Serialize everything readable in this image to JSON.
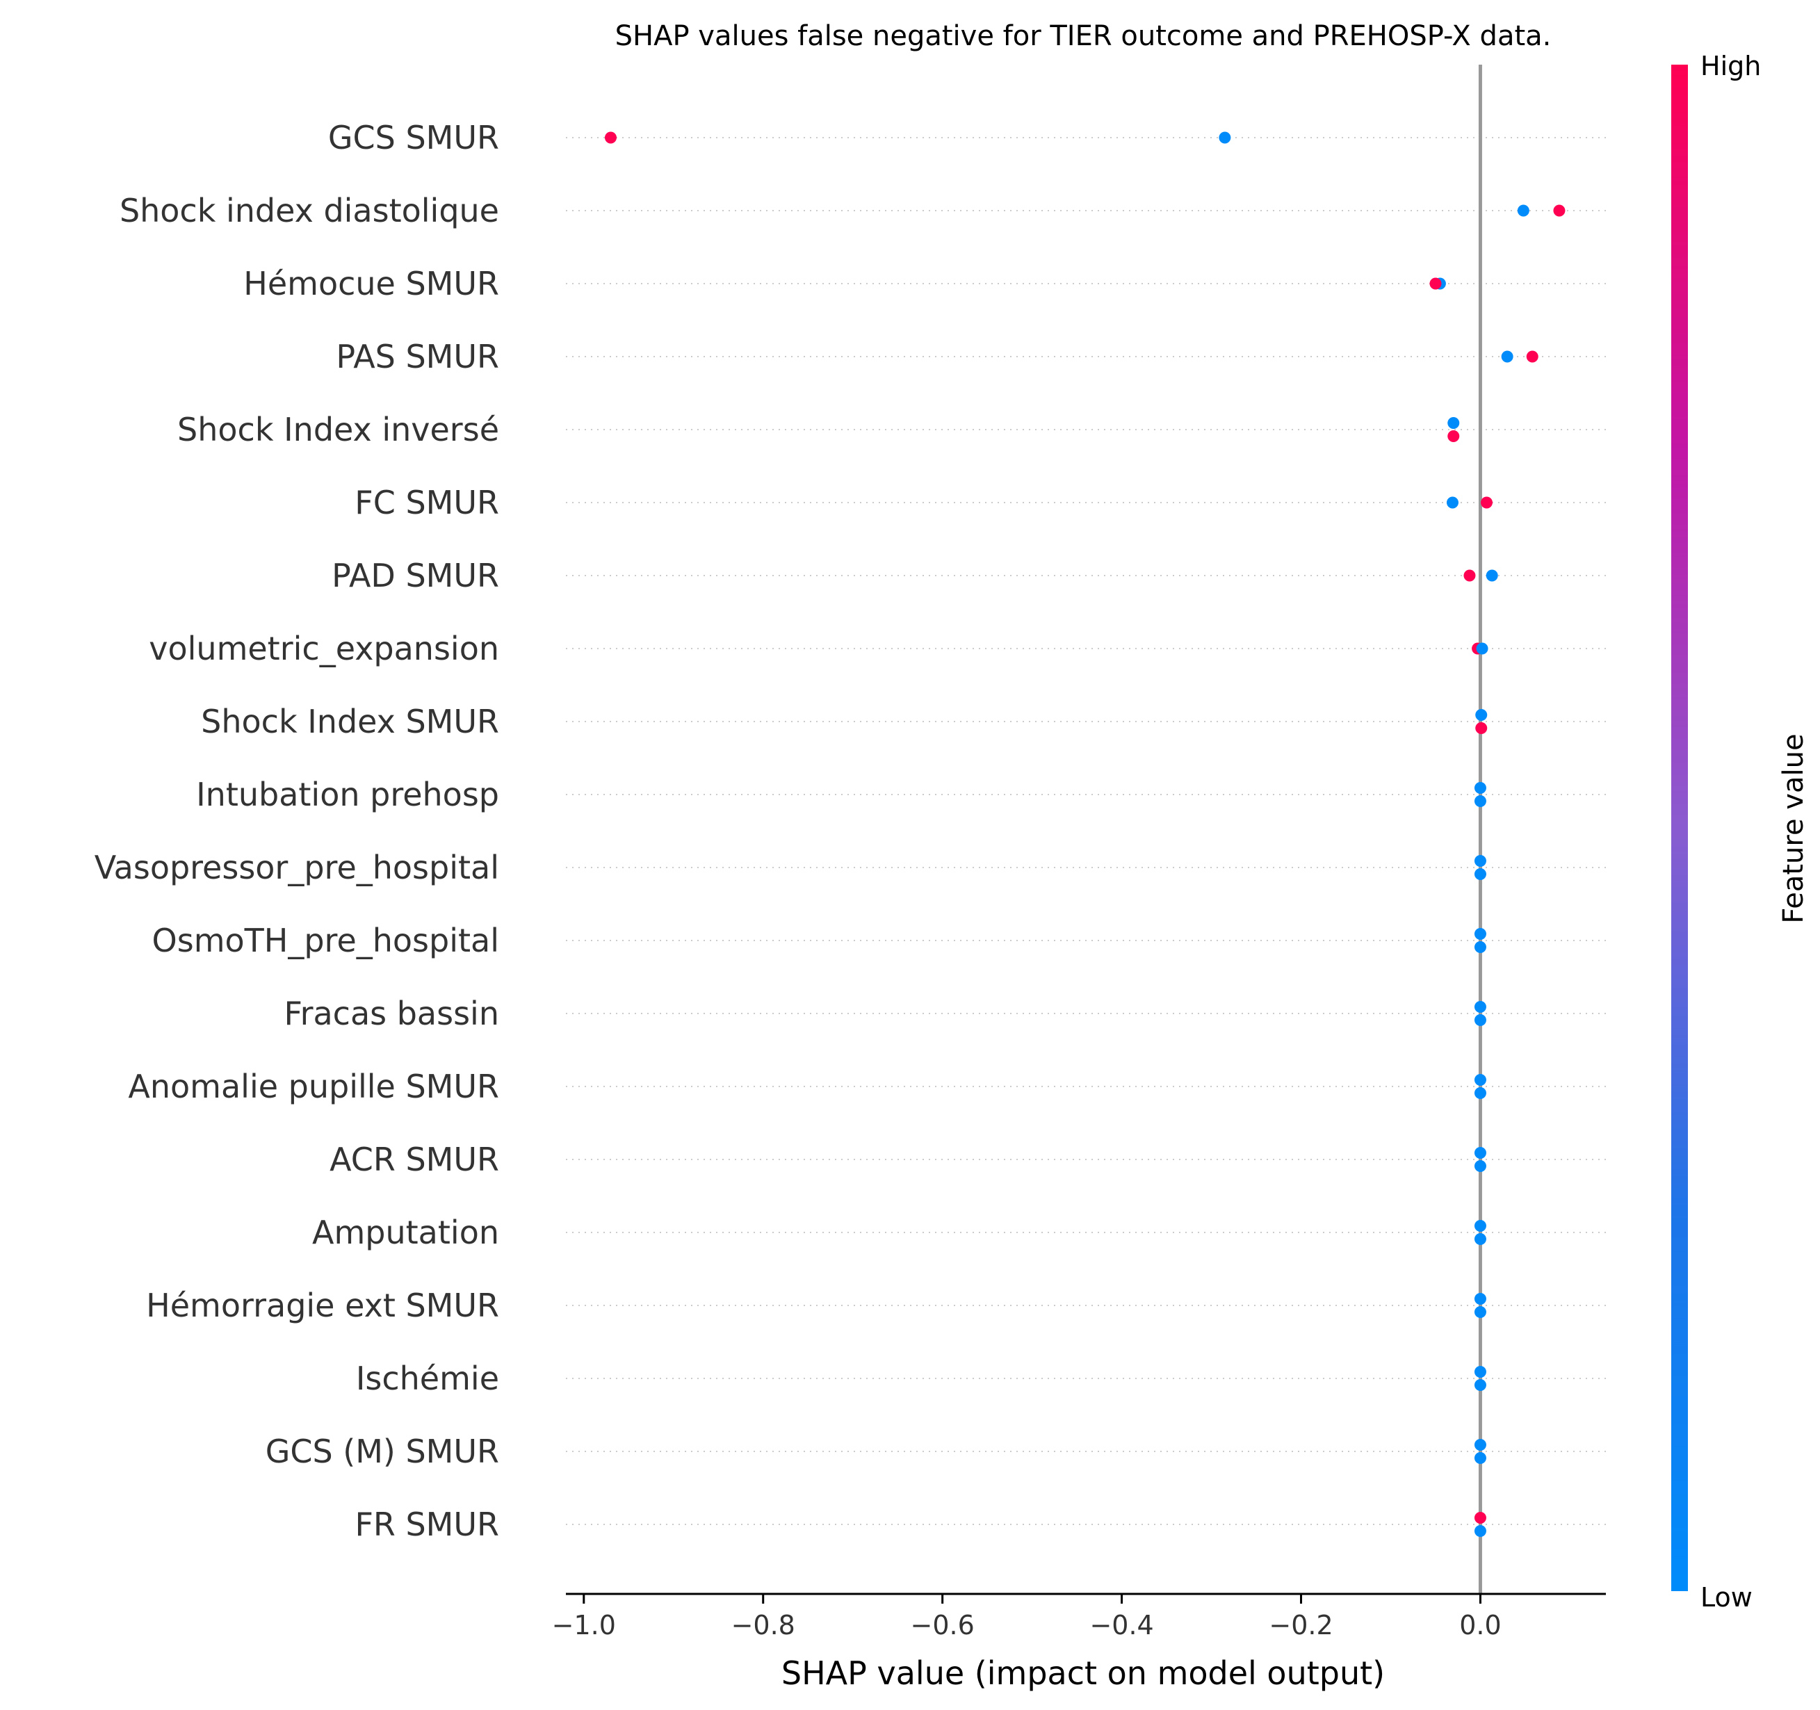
{
  "chart_data": {
    "type": "scatter",
    "title": "SHAP values false negative for TIER outcome and PREHOSP-X data.",
    "xlabel": "SHAP value (impact on model output)",
    "xlim": [
      -1.02,
      0.14
    ],
    "xticks": [
      -1.0,
      -0.8,
      -0.6,
      -0.4,
      -0.2,
      0.0
    ],
    "xtick_labels": [
      "−1.0",
      "−0.8",
      "−0.6",
      "−0.4",
      "−0.2",
      "0.0"
    ],
    "zero_line": true,
    "grid": "horizontal dotted per feature",
    "colors": {
      "high": "#ff0052",
      "low": "#008bfb",
      "mid": "#9d4fce",
      "zero_line": "#999999",
      "grid": "#cccccc"
    },
    "colorbar": {
      "high_label": "High",
      "low_label": "Low",
      "title": "Feature value"
    },
    "features": [
      {
        "name": "GCS SMUR ",
        "points": [
          {
            "x": -0.97,
            "value": "high",
            "dy": 0
          },
          {
            "x": -0.285,
            "value": "low",
            "dy": 0
          }
        ]
      },
      {
        "name": "Shock index diastolique",
        "points": [
          {
            "x": 0.048,
            "value": "low",
            "dy": 0
          },
          {
            "x": 0.088,
            "value": "high",
            "dy": 0
          }
        ]
      },
      {
        "name": "Hémocue SMUR ",
        "points": [
          {
            "x": -0.045,
            "value": "low",
            "dy": 0
          },
          {
            "x": -0.05,
            "value": "high",
            "dy": 0
          }
        ]
      },
      {
        "name": "PAS  SMUR ",
        "points": [
          {
            "x": 0.03,
            "value": "low",
            "dy": 0
          },
          {
            "x": 0.058,
            "value": "high",
            "dy": 0
          }
        ]
      },
      {
        "name": "Shock Index inversé",
        "points": [
          {
            "x": -0.03,
            "value": "low",
            "dy": -1
          },
          {
            "x": -0.03,
            "value": "high",
            "dy": 1
          }
        ]
      },
      {
        "name": "FC SMUR ",
        "points": [
          {
            "x": -0.031,
            "value": "low",
            "dy": 0
          },
          {
            "x": 0.007,
            "value": "high",
            "dy": 0
          }
        ]
      },
      {
        "name": "PAD  SMUR ",
        "points": [
          {
            "x": -0.012,
            "value": "high",
            "dy": 0
          },
          {
            "x": 0.013,
            "value": "low",
            "dy": 0
          }
        ]
      },
      {
        "name": "volumetric_expansion",
        "points": [
          {
            "x": -0.003,
            "value": "high",
            "dy": 0
          },
          {
            "x": 0.002,
            "value": "low",
            "dy": 0
          }
        ]
      },
      {
        "name": "Shock Index SMUR",
        "points": [
          {
            "x": 0.001,
            "value": "low",
            "dy": -1
          },
          {
            "x": 0.001,
            "value": "high",
            "dy": 1
          }
        ]
      },
      {
        "name": "Intubation prehosp",
        "points": [
          {
            "x": 0.0,
            "value": "low",
            "dy": -1
          },
          {
            "x": 0.0,
            "value": "low",
            "dy": 1
          }
        ]
      },
      {
        "name": "Vasopressor_pre_hospital",
        "points": [
          {
            "x": 0.0,
            "value": "low",
            "dy": -1
          },
          {
            "x": 0.0,
            "value": "low",
            "dy": 1
          }
        ]
      },
      {
        "name": "OsmoTH_pre_hospital",
        "points": [
          {
            "x": 0.0,
            "value": "low",
            "dy": -1
          },
          {
            "x": 0.0,
            "value": "low",
            "dy": 1
          }
        ]
      },
      {
        "name": "Fracas bassin",
        "points": [
          {
            "x": 0.0,
            "value": "low",
            "dy": -1
          },
          {
            "x": 0.0,
            "value": "low",
            "dy": 1
          }
        ]
      },
      {
        "name": "Anomalie pupille SMUR",
        "points": [
          {
            "x": 0.0,
            "value": "low",
            "dy": -1
          },
          {
            "x": 0.0,
            "value": "low",
            "dy": 1
          }
        ]
      },
      {
        "name": "ACR SMUR",
        "points": [
          {
            "x": 0.0,
            "value": "low",
            "dy": -1
          },
          {
            "x": 0.0,
            "value": "low",
            "dy": 1
          }
        ]
      },
      {
        "name": "Amputation",
        "points": [
          {
            "x": 0.0,
            "value": "low",
            "dy": -1
          },
          {
            "x": 0.0,
            "value": "low",
            "dy": 1
          }
        ]
      },
      {
        "name": "Hémorragie ext SMUR",
        "points": [
          {
            "x": 0.0,
            "value": "low",
            "dy": -1
          },
          {
            "x": 0.0,
            "value": "low",
            "dy": 1
          }
        ]
      },
      {
        "name": "Ischémie",
        "points": [
          {
            "x": 0.0,
            "value": "low",
            "dy": -1
          },
          {
            "x": 0.0,
            "value": "low",
            "dy": 1
          }
        ]
      },
      {
        "name": "GCS (M) SMUR ",
        "points": [
          {
            "x": 0.0,
            "value": "low",
            "dy": -1
          },
          {
            "x": 0.0,
            "value": "low",
            "dy": 1
          }
        ]
      },
      {
        "name": "FR SMUR",
        "points": [
          {
            "x": 0.0,
            "value": "high",
            "dy": -1
          },
          {
            "x": 0.0,
            "value": "low",
            "dy": 1
          }
        ]
      }
    ]
  }
}
